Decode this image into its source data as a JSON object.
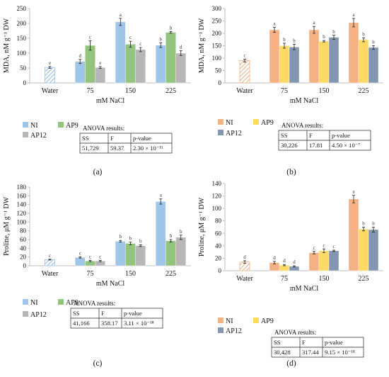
{
  "colors": {
    "NI_a": "#9fc5e8",
    "AP9_a": "#93c47d",
    "AP12_a": "#b7b7b7",
    "water_a": "#9fc5e8",
    "NI_b": "#f4b183",
    "AP9_b": "#ffd966",
    "AP12_b": "#8497b0",
    "water_b": "#f4b183",
    "axis": "#bfbfbf",
    "error": "#222222"
  },
  "common": {
    "xlabel": "mM NaCl",
    "legend": [
      "NI",
      "AP9",
      "AP12"
    ],
    "anova_title": "ANOVA results:",
    "anova_headers": [
      "SS",
      "F",
      "p-value"
    ]
  },
  "panels": [
    {
      "label": "(a)",
      "ylabel": "MDA, nM g⁻¹ DW",
      "anova_values": [
        "51,729",
        "59.37",
        "2.30 × 10⁻¹¹"
      ]
    },
    {
      "label": "(b)",
      "ylabel": "MDA, nM g⁻¹ DW",
      "anova_values": [
        "30,226",
        "17.81",
        "4.50 × 10⁻⁷"
      ]
    },
    {
      "label": "(c)",
      "ylabel": "Proline, μM g⁻¹ DW",
      "anova_values": [
        "41,166",
        "358.17",
        "3.11 × 10⁻¹⁸"
      ]
    },
    {
      "label": "(d)",
      "ylabel": "Proline, μM g⁻¹ DW",
      "anova_values": [
        "30,428",
        "317.44",
        "9.15 × 10⁻¹⁸"
      ]
    }
  ],
  "chart_data": [
    {
      "type": "bar",
      "panel": "a",
      "ylabel": "MDA, nM g⁻¹ DW",
      "xlabel": "mM NaCl",
      "ylim": [
        0,
        250
      ],
      "yticks": [
        0,
        50,
        100,
        150,
        200,
        250
      ],
      "grid": false,
      "legend_position": "bottom",
      "categories": [
        "Water",
        "75",
        "150",
        "225"
      ],
      "water": {
        "value": 52,
        "err": 3,
        "letter": "e"
      },
      "series": [
        {
          "name": "NI",
          "values": [
            null,
            72,
            205,
            127
          ],
          "errors": [
            null,
            7,
            12,
            8
          ],
          "letters": [
            null,
            "d",
            "a",
            "b"
          ]
        },
        {
          "name": "AP9",
          "values": [
            null,
            126,
            130,
            170
          ],
          "errors": [
            null,
            16,
            10,
            3
          ],
          "letters": [
            null,
            "c",
            "c",
            "b"
          ]
        },
        {
          "name": "AP12",
          "values": [
            null,
            52,
            112,
            100
          ],
          "errors": [
            null,
            3,
            7,
            8
          ],
          "letters": [
            null,
            "e",
            "c",
            "d"
          ]
        }
      ]
    },
    {
      "type": "bar",
      "panel": "b",
      "ylabel": "MDA, nM g⁻¹ DW",
      "xlabel": "mM NaCl",
      "ylim": [
        0,
        300
      ],
      "yticks": [
        0,
        50,
        100,
        150,
        200,
        250,
        300
      ],
      "grid": false,
      "legend_position": "bottom",
      "categories": [
        "Water",
        "75",
        "150",
        "225"
      ],
      "water": {
        "value": 90,
        "err": 6,
        "letter": "c"
      },
      "series": [
        {
          "name": "NI",
          "values": [
            null,
            214,
            214,
            243
          ],
          "errors": [
            null,
            10,
            14,
            17
          ],
          "letters": [
            null,
            "a",
            "a",
            "a"
          ]
        },
        {
          "name": "AP9",
          "values": [
            null,
            150,
            168,
            174
          ],
          "errors": [
            null,
            10,
            3,
            8
          ],
          "letters": [
            null,
            "b",
            "b",
            "b"
          ]
        },
        {
          "name": "AP12",
          "values": [
            null,
            145,
            184,
            143
          ],
          "errors": [
            null,
            11,
            8,
            7
          ],
          "letters": [
            null,
            "b",
            "b",
            "b"
          ]
        }
      ]
    },
    {
      "type": "bar",
      "panel": "c",
      "ylabel": "Proline, μM g⁻¹ DW",
      "xlabel": "mM NaCl",
      "ylim": [
        0,
        180
      ],
      "yticks": [
        0,
        20,
        40,
        60,
        80,
        100,
        120,
        140,
        160,
        180
      ],
      "grid": false,
      "legend_position": "bottom",
      "categories": [
        "Water",
        "75",
        "150",
        "225"
      ],
      "water": {
        "value": 14,
        "err": 1,
        "letter": "c"
      },
      "series": [
        {
          "name": "NI",
          "values": [
            null,
            19,
            56,
            147
          ],
          "errors": [
            null,
            1.5,
            2,
            6
          ],
          "letters": [
            null,
            "c",
            "b",
            "a"
          ]
        },
        {
          "name": "AP9",
          "values": [
            null,
            11,
            51,
            57
          ],
          "errors": [
            null,
            1.5,
            3,
            3
          ],
          "letters": [
            null,
            "c",
            "b",
            "b"
          ]
        },
        {
          "name": "AP12",
          "values": [
            null,
            11,
            46,
            65
          ],
          "errors": [
            null,
            1.5,
            2,
            5
          ],
          "letters": [
            null,
            "c",
            "b",
            "b"
          ]
        }
      ]
    },
    {
      "type": "bar",
      "panel": "d",
      "ylabel": "Proline, μM g⁻¹ DW",
      "xlabel": "mM NaCl",
      "ylim": [
        0,
        140
      ],
      "yticks": [
        0,
        20,
        40,
        60,
        80,
        100,
        120,
        140
      ],
      "grid": false,
      "legend_position": "bottom",
      "categories": [
        "Water",
        "75",
        "150",
        "225"
      ],
      "water": {
        "value": 14,
        "err": 2,
        "letter": "d"
      },
      "series": [
        {
          "name": "NI",
          "values": [
            null,
            13,
            29,
            115
          ],
          "errors": [
            null,
            2,
            2,
            6
          ],
          "letters": [
            null,
            "d",
            "c",
            "a"
          ]
        },
        {
          "name": "AP9",
          "values": [
            null,
            9,
            32,
            67
          ],
          "errors": [
            null,
            1,
            3,
            3
          ],
          "letters": [
            null,
            "d",
            "c",
            "b"
          ]
        },
        {
          "name": "AP12",
          "values": [
            null,
            7,
            32,
            66
          ],
          "errors": [
            null,
            1,
            1,
            4
          ],
          "letters": [
            null,
            "d",
            "c",
            "b"
          ]
        }
      ]
    }
  ]
}
